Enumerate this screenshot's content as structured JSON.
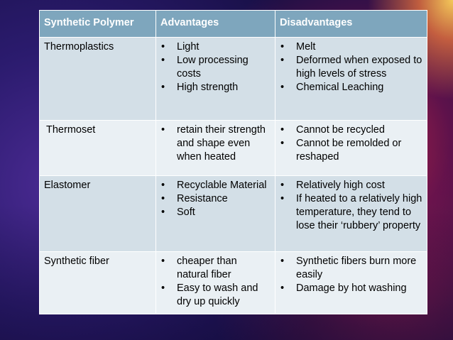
{
  "table": {
    "headers": [
      "Synthetic Polymer",
      "Advantages",
      "Disadvantages"
    ],
    "rows": [
      {
        "polymer": "Thermoplastics",
        "advantages": [
          "Light",
          "Low processing costs",
          "High strength"
        ],
        "disadvantages": [
          "Melt",
          "Deformed when exposed to high levels of stress",
          "Chemical Leaching"
        ]
      },
      {
        "polymer": "Thermoset",
        "advantages": [
          "retain their strength and shape even when heated"
        ],
        "disadvantages": [
          "Cannot be recycled",
          "Cannot be remolded or reshaped"
        ]
      },
      {
        "polymer": "Elastomer",
        "advantages": [
          "Recyclable Material",
          "Resistance",
          "Soft"
        ],
        "disadvantages": [
          "Relatively high cost",
          "If heated to a relatively high temperature, they tend to lose their ‘rubbery’ property"
        ]
      },
      {
        "polymer": "Synthetic fiber",
        "advantages": [
          "cheaper than natural fiber",
          "Easy to wash and dry up quickly"
        ],
        "disadvantages": [
          "Synthetic fibers burn more easily",
          "Damage by hot washing"
        ]
      }
    ]
  },
  "colors": {
    "header_bg": "#7ea6bd",
    "row_odd_bg": "#d3dfe7",
    "row_even_bg": "#eaf0f4",
    "background_main": "#2b1b6e",
    "background_accent": "#d02848"
  }
}
